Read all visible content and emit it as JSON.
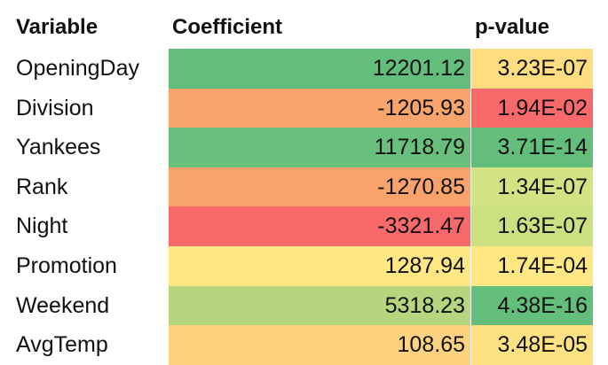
{
  "table": {
    "header": [
      "Variable",
      "Coefficient",
      "p-value"
    ],
    "rows": [
      [
        "OpeningDay",
        "12201.12",
        "3.23E-07"
      ],
      [
        "Division",
        "-1205.93",
        "1.94E-02"
      ],
      [
        "Yankees",
        "11718.79",
        "3.71E-14"
      ],
      [
        "Rank",
        "-1270.85",
        "1.34E-07"
      ],
      [
        "Night",
        "-3321.47",
        "1.63E-07"
      ],
      [
        "Promotion",
        "1287.94",
        "1.74E-04"
      ],
      [
        "Weekend",
        "5318.23",
        "4.38E-16"
      ],
      [
        "AvgTemp",
        "108.65",
        "3.48E-05"
      ]
    ],
    "colors": [
      [
        "#63be7b",
        "#fedd81"
      ],
      [
        "#f9a46c",
        "#f8696b"
      ],
      [
        "#69c07c",
        "#63be7b"
      ],
      [
        "#f9a26c",
        "#d3e282"
      ],
      [
        "#f8696b",
        "#cde081"
      ],
      [
        "#ffe884",
        "#ffe784"
      ],
      [
        "#b5d67f",
        "#63be7b"
      ],
      [
        "#fed380",
        "#fee282"
      ]
    ]
  }
}
